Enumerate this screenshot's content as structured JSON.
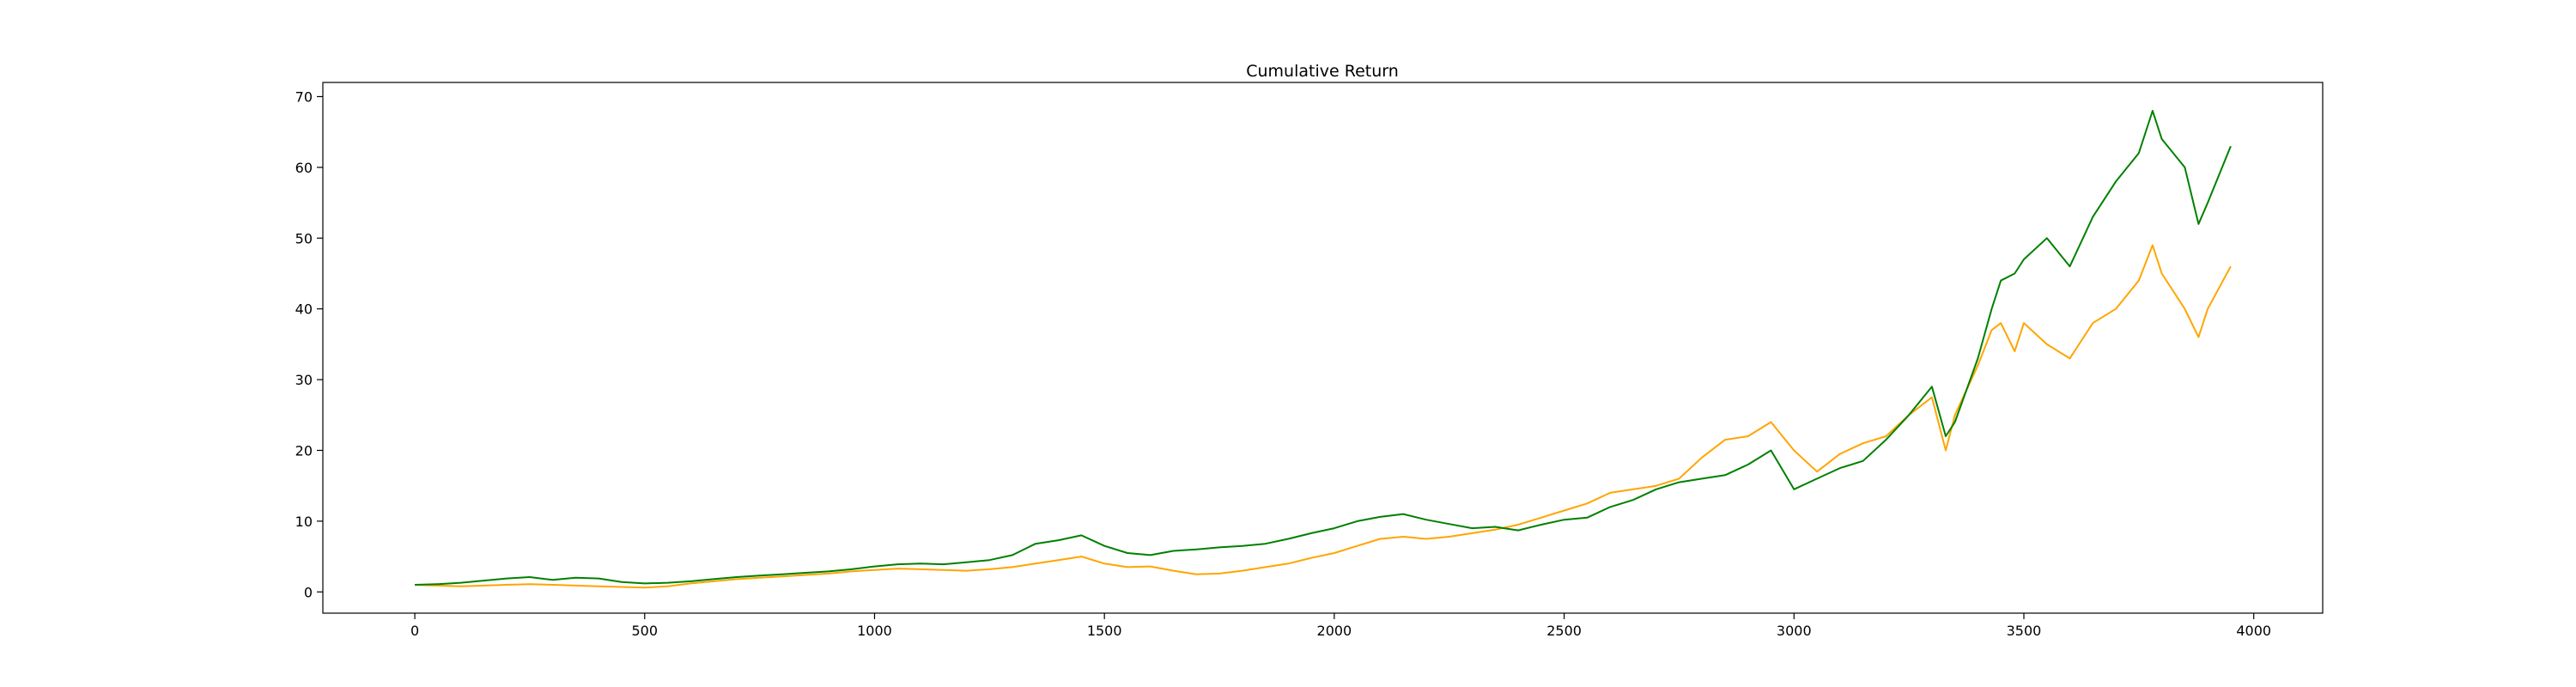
{
  "chart_data": {
    "type": "line",
    "title": "Cumulative Return",
    "xlabel": "",
    "ylabel": "",
    "xlim": [
      -200,
      4150
    ],
    "ylim": [
      -3,
      72
    ],
    "xticks": [
      0,
      500,
      1000,
      1500,
      2000,
      2500,
      3000,
      3500,
      4000
    ],
    "yticks": [
      0,
      10,
      20,
      30,
      40,
      50,
      60,
      70
    ],
    "grid": false,
    "legend": "none",
    "x": [
      0,
      50,
      100,
      150,
      200,
      250,
      300,
      350,
      400,
      450,
      500,
      550,
      600,
      650,
      700,
      750,
      800,
      850,
      900,
      950,
      1000,
      1050,
      1100,
      1150,
      1200,
      1250,
      1300,
      1350,
      1400,
      1450,
      1500,
      1550,
      1600,
      1650,
      1700,
      1750,
      1800,
      1850,
      1900,
      1950,
      2000,
      2050,
      2100,
      2150,
      2200,
      2250,
      2300,
      2350,
      2400,
      2450,
      2500,
      2550,
      2600,
      2650,
      2700,
      2750,
      2800,
      2850,
      2900,
      2950,
      3000,
      3050,
      3100,
      3150,
      3200,
      3250,
      3300,
      3330,
      3350,
      3400,
      3430,
      3450,
      3480,
      3500,
      3550,
      3600,
      3650,
      3700,
      3750,
      3780,
      3800,
      3850,
      3880,
      3900,
      3950
    ],
    "series": [
      {
        "color": "#008000",
        "values": [
          1.0,
          1.1,
          1.3,
          1.6,
          1.9,
          2.1,
          1.7,
          2.0,
          1.9,
          1.4,
          1.2,
          1.3,
          1.5,
          1.8,
          2.1,
          2.3,
          2.5,
          2.7,
          2.9,
          3.2,
          3.6,
          3.9,
          4.0,
          3.9,
          4.2,
          4.5,
          5.2,
          6.8,
          7.3,
          8.0,
          6.5,
          5.5,
          5.2,
          5.8,
          6.0,
          6.3,
          6.5,
          6.8,
          7.5,
          8.3,
          9.0,
          10.0,
          10.6,
          11.0,
          10.2,
          9.6,
          9.0,
          9.2,
          8.7,
          9.5,
          10.2,
          10.5,
          12.0,
          13.0,
          14.5,
          15.5,
          16.0,
          16.5,
          18.0,
          20.0,
          14.5,
          16.0,
          17.5,
          18.5,
          21.5,
          25.0,
          29.0,
          22.0,
          24.0,
          33.0,
          40.0,
          44.0,
          45.0,
          47.0,
          50.0,
          46.0,
          53.0,
          58.0,
          62.0,
          68.0,
          64.0,
          60.0,
          52.0,
          55.0,
          63.0
        ]
      },
      {
        "color": "#FFA500",
        "values": [
          1.0,
          0.9,
          0.8,
          0.9,
          1.0,
          1.1,
          1.0,
          0.9,
          0.8,
          0.7,
          0.6,
          0.8,
          1.2,
          1.5,
          1.8,
          2.0,
          2.2,
          2.4,
          2.6,
          2.9,
          3.1,
          3.3,
          3.2,
          3.1,
          3.0,
          3.2,
          3.5,
          4.0,
          4.5,
          5.0,
          4.0,
          3.5,
          3.6,
          3.0,
          2.5,
          2.6,
          3.0,
          3.5,
          4.0,
          4.8,
          5.5,
          6.5,
          7.5,
          7.8,
          7.5,
          7.8,
          8.3,
          8.8,
          9.5,
          10.5,
          11.5,
          12.5,
          14.0,
          14.5,
          15.0,
          16.0,
          19.0,
          21.5,
          22.0,
          24.0,
          20.0,
          17.0,
          19.5,
          21.0,
          22.0,
          25.0,
          27.5,
          20.0,
          25.0,
          32.0,
          37.0,
          38.0,
          34.0,
          38.0,
          35.0,
          33.0,
          38.0,
          40.0,
          44.0,
          49.0,
          45.0,
          40.0,
          36.0,
          40.0,
          46.0
        ]
      }
    ]
  }
}
